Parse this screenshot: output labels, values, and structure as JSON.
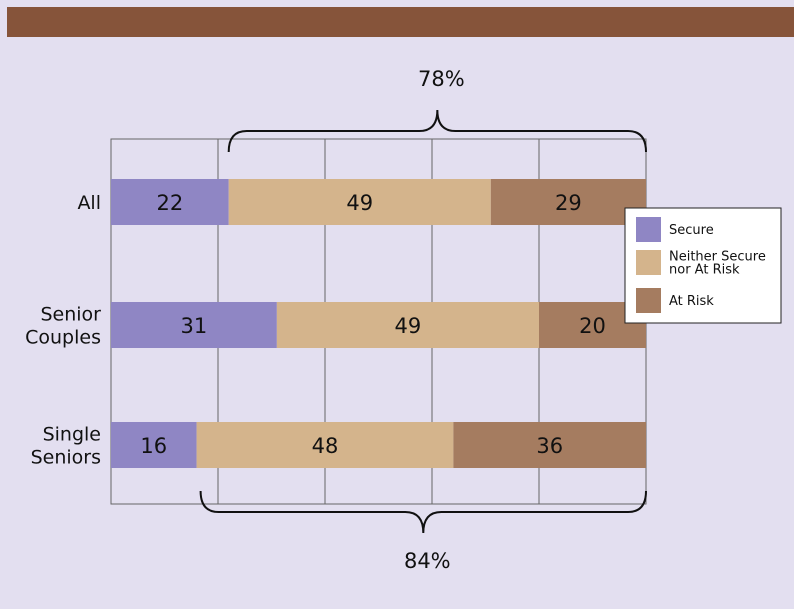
{
  "colors": {
    "header_bar": "#86543a",
    "background": "#e3dff0",
    "secure": "#8f86c4",
    "neither": "#d4b48c",
    "at_risk": "#a57c60",
    "grid": "#666666",
    "text": "#111111"
  },
  "chart_data": {
    "type": "bar",
    "orientation": "horizontal",
    "stacked": true,
    "categories": [
      "All",
      "Senior Couples",
      "Single Seniors"
    ],
    "category_lines": [
      [
        "All"
      ],
      [
        "Senior",
        "Couples"
      ],
      [
        "Single",
        "Seniors"
      ]
    ],
    "series": [
      {
        "name": "Secure",
        "color_key": "secure",
        "values": [
          22,
          31,
          16
        ]
      },
      {
        "name": "Neither Secure nor At Risk",
        "color_key": "neither",
        "values": [
          49,
          49,
          48
        ]
      },
      {
        "name": "At Risk",
        "color_key": "at_risk",
        "values": [
          29,
          20,
          36
        ]
      }
    ],
    "xlim": [
      0,
      100
    ],
    "grid_x_values": [
      20,
      40,
      60,
      80
    ],
    "grid": true,
    "legend": {
      "placement": "right",
      "entries": [
        {
          "lines": [
            "Secure"
          ],
          "color_key": "secure"
        },
        {
          "lines": [
            "Neither Secure",
            "nor At Risk"
          ],
          "color_key": "neither"
        },
        {
          "lines": [
            "At Risk"
          ],
          "color_key": "at_risk"
        }
      ]
    },
    "annotations": [
      {
        "text": "78%",
        "placement": "top",
        "brace_from": 22,
        "brace_to": 100
      },
      {
        "text": "84%",
        "placement": "bottom",
        "brace_from": 16,
        "brace_to": 100
      }
    ]
  }
}
